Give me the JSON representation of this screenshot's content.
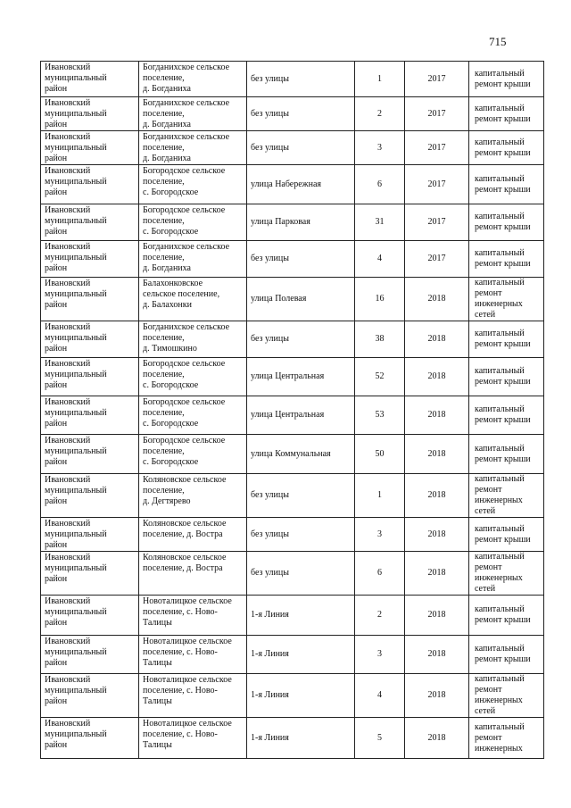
{
  "page_number": "715",
  "rows": [
    {
      "district": [
        "Ивановский",
        "муниципальный",
        "район"
      ],
      "settlement": [
        "Богданихское сельское",
        "поселение,",
        "д. Богданиха"
      ],
      "street": "без улицы",
      "house": "1",
      "year": "2017",
      "work": [
        "капитальный",
        "ремонт крыши"
      ]
    },
    {
      "district": [
        "Ивановский",
        "муниципальный",
        "район"
      ],
      "settlement": [
        "Богданихское сельское",
        "поселение,",
        "д. Богданиха"
      ],
      "street": "без улицы",
      "house": "2",
      "year": "2017",
      "work": [
        "капитальный",
        "ремонт крыши"
      ]
    },
    {
      "district": [
        "Ивановский",
        "муниципальный",
        "район"
      ],
      "settlement": [
        "Богданихское сельское",
        "поселение,",
        "д. Богданиха"
      ],
      "street": "без улицы",
      "house": "3",
      "year": "2017",
      "work": [
        "капитальный",
        "ремонт крыши"
      ]
    },
    {
      "district": [
        "Ивановский",
        "муниципальный",
        "район"
      ],
      "settlement": [
        "Богородское сельское",
        "поселение,",
        "с. Богородское"
      ],
      "street": "улица Набережная",
      "house": "6",
      "year": "2017",
      "work": [
        "капитальный",
        "ремонт крыши"
      ]
    },
    {
      "district": [
        "Ивановский",
        "муниципальный",
        "район"
      ],
      "settlement": [
        "Богородское сельское",
        "поселение,",
        "с. Богородское"
      ],
      "street": "улица Парковая",
      "house": "31",
      "year": "2017",
      "work": [
        "капитальный",
        "ремонт крыши"
      ]
    },
    {
      "district": [
        "Ивановский",
        "муниципальный",
        "район"
      ],
      "settlement": [
        "Богданихское сельское",
        "поселение,",
        "д. Богданиха"
      ],
      "street": "без улицы",
      "house": "4",
      "year": "2017",
      "work": [
        "капитальный",
        "ремонт крыши"
      ]
    },
    {
      "district": [
        "Ивановский",
        "муниципальный",
        "район"
      ],
      "settlement": [
        "Балахонковское",
        "сельское поселение,",
        "д. Балахонки"
      ],
      "street": "улица Полевая",
      "house": "16",
      "year": "2018",
      "work": [
        "капитальный",
        "ремонт",
        "инженерных",
        "сетей"
      ]
    },
    {
      "district": [
        "Ивановский",
        "муниципальный",
        "район"
      ],
      "settlement": [
        "Богданихское сельское",
        "поселение,",
        "д. Тимошкино"
      ],
      "street": "без улицы",
      "house": "38",
      "year": "2018",
      "work": [
        "капитальный",
        "ремонт крыши"
      ]
    },
    {
      "district": [
        "Ивановский",
        "муниципальный",
        "район"
      ],
      "settlement": [
        "Богородское сельское",
        "поселение,",
        "с. Богородское"
      ],
      "street": "улица Центральная",
      "house": "52",
      "year": "2018",
      "work": [
        "капитальный",
        "ремонт крыши"
      ]
    },
    {
      "district": [
        "Ивановский",
        "муниципальный",
        "район"
      ],
      "settlement": [
        "Богородское сельское",
        "поселение,",
        "с. Богородское"
      ],
      "street": "улица Центральная",
      "house": "53",
      "year": "2018",
      "work": [
        "капитальный",
        "ремонт крыши"
      ]
    },
    {
      "district": [
        "Ивановский",
        "муниципальный",
        "район"
      ],
      "settlement": [
        "Богородское сельское",
        "поселение,",
        "с. Богородское"
      ],
      "street": "улица Коммунальная",
      "house": "50",
      "year": "2018",
      "work": [
        "капитальный",
        "ремонт крыши"
      ]
    },
    {
      "district": [
        "Ивановский",
        "муниципальный",
        "район"
      ],
      "settlement": [
        "Коляновское сельское",
        "поселение,",
        " д. Дегтярево"
      ],
      "street": "без улицы",
      "house": "1",
      "year": "2018",
      "work": [
        "капитальный",
        "ремонт",
        "инженерных",
        "сетей"
      ]
    },
    {
      "district": [
        "Ивановский",
        "муниципальный",
        "район"
      ],
      "settlement": [
        "Коляновское сельское",
        "поселение, д. Востра"
      ],
      "street": "без улицы",
      "house": "3",
      "year": "2018",
      "work": [
        "капитальный",
        "ремонт крыши"
      ]
    },
    {
      "district": [
        "Ивановский",
        "муниципальный",
        "район"
      ],
      "settlement": [
        "Коляновское сельское",
        "поселение, д. Востра"
      ],
      "street": "без улицы",
      "house": "6",
      "year": "2018",
      "work": [
        "капитальный",
        "ремонт",
        "инженерных",
        "сетей"
      ]
    },
    {
      "district": [
        "Ивановский",
        "муниципальный",
        "район"
      ],
      "settlement": [
        "Новоталицкое сельское",
        "поселение, с. Ново-",
        "Талицы"
      ],
      "street": "1-я Линия",
      "house": "2",
      "year": "2018",
      "work": [
        "капитальный",
        "ремонт крыши"
      ]
    },
    {
      "district": [
        "Ивановский",
        "муниципальный",
        "район"
      ],
      "settlement": [
        "Новоталицкое сельское",
        "поселение, с. Ново-",
        "Талицы"
      ],
      "street": "1-я Линия",
      "house": "3",
      "year": "2018",
      "work": [
        "капитальный",
        "ремонт крыши"
      ]
    },
    {
      "district": [
        "Ивановский",
        "муниципальный",
        "район"
      ],
      "settlement": [
        "Новоталицкое сельское",
        "поселение, с. Ново-",
        "Талицы"
      ],
      "street": "1-я Линия",
      "house": "4",
      "year": "2018",
      "work": [
        "капитальный",
        "ремонт",
        "инженерных",
        "сетей"
      ]
    },
    {
      "district": [
        "Ивановский",
        "муниципальный",
        "район"
      ],
      "settlement": [
        "Новоталицкое сельское",
        "поселение, с. Ново-",
        "Талицы"
      ],
      "street": "1-я Линия",
      "house": "5",
      "year": "2018",
      "work": [
        "капитальный",
        "ремонт",
        "инженерных"
      ]
    }
  ]
}
